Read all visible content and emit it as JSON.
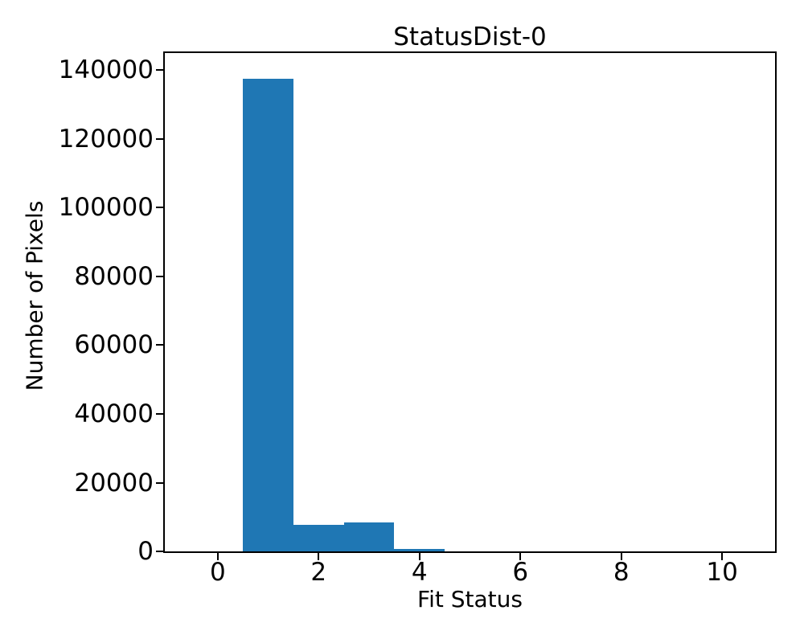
{
  "chart_data": {
    "type": "bar",
    "subtype": "histogram",
    "title": "StatusDist-0",
    "xlabel": "Fit Status",
    "ylabel": "Number of Pixels",
    "bar_color": "#1f77b4",
    "text_color": "#000000",
    "background_color": "#ffffff",
    "bin_centers": [
      0,
      1,
      2,
      3,
      4,
      5,
      6,
      7,
      8,
      9,
      10
    ],
    "bin_width": 1,
    "values": [
      0,
      137500,
      7700,
      8400,
      800,
      0,
      0,
      0,
      0,
      0,
      0
    ],
    "xticks": [
      0,
      2,
      4,
      6,
      8,
      10
    ],
    "yticks": [
      0,
      20000,
      40000,
      60000,
      80000,
      100000,
      120000,
      140000
    ],
    "xlim": [
      -1.05,
      11.05
    ],
    "ylim": [
      0,
      145000
    ],
    "grid": false,
    "legend": null
  }
}
